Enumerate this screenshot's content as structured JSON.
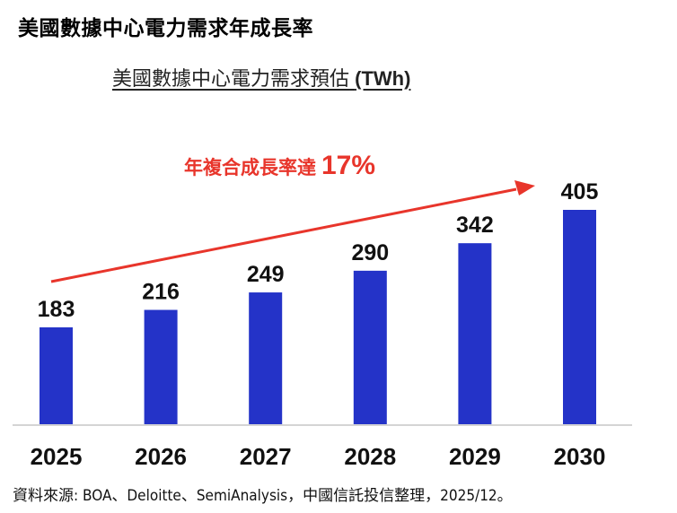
{
  "header": {
    "main_title": "美國數據中心電力需求年成長率",
    "chart_subtitle": "美國數據中心電力需求預估",
    "chart_unit": "(TWh)"
  },
  "chart_data": {
    "type": "bar",
    "title": "美國數據中心電力需求預估 (TWh)",
    "xlabel": "",
    "ylabel": "TWh",
    "categories": [
      "2025",
      "2026",
      "2027",
      "2028",
      "2029",
      "2030"
    ],
    "values": [
      183,
      216,
      249,
      290,
      342,
      405
    ],
    "ylim": [
      0,
      405
    ],
    "grid": false,
    "bar_color": "#2433c8",
    "annotation": {
      "text": "年複合成長率達",
      "highlight": "17%",
      "color": "#e8352b",
      "type": "trend-arrow"
    }
  },
  "footer": {
    "source": "資料來源: BOA、Deloitte、SemiAnalysis，中國信託投信整理，2025/12。"
  }
}
